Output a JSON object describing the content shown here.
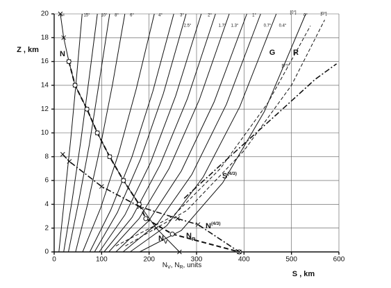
{
  "chart_data": {
    "type": "line",
    "ylabel": "Z , km",
    "xlabel": "S , km",
    "xlabel2": [
      {
        "text": "N",
        "sub": "V"
      },
      {
        "text": ", N",
        "sub": "R"
      },
      {
        "text": ", units"
      }
    ],
    "xlim": [
      0,
      600
    ],
    "ylim": [
      0,
      20
    ],
    "xticks": [
      0,
      100,
      200,
      300,
      400,
      500,
      600
    ],
    "yticks": [
      0,
      2,
      4,
      6,
      8,
      10,
      12,
      14,
      16,
      18,
      20
    ],
    "grid": true,
    "annotations": [
      "ε=",
      "N",
      "G",
      "R",
      "[0°]",
      "[0°]",
      "[0°]"
    ],
    "series": [
      {
        "name": "15°",
        "color": "#111",
        "style": "solid",
        "x": [
          10,
          22,
          35,
          47,
          59
        ],
        "values": [
          0,
          4.6,
          9.5,
          14.6,
          20
        ]
      },
      {
        "name": "10°",
        "color": "#111",
        "style": "solid",
        "x": [
          20,
          38,
          56,
          73,
          91
        ],
        "values": [
          0,
          4.4,
          9.3,
          14.4,
          20
        ]
      },
      {
        "name": "8°",
        "color": "#111",
        "style": "solid",
        "x": [
          30,
          52,
          74,
          95,
          117
        ],
        "values": [
          0,
          4.3,
          9.0,
          14.3,
          20
        ]
      },
      {
        "name": "6°",
        "color": "#111",
        "style": "solid",
        "x": [
          45,
          71,
          97,
          123,
          149
        ],
        "values": [
          0,
          4.1,
          8.8,
          14.1,
          20
        ]
      },
      {
        "name": "4°",
        "color": "#111",
        "style": "solid",
        "x": [
          60,
          98,
          136,
          173,
          211
        ],
        "values": [
          0,
          3.7,
          8.3,
          13.7,
          20
        ]
      },
      {
        "name": "3°",
        "color": "#111",
        "style": "solid",
        "x": [
          75,
          119,
          164,
          208,
          252
        ],
        "values": [
          0,
          3.5,
          8.0,
          13.5,
          20
        ]
      },
      {
        "name": "2.5°",
        "color": "#111",
        "style": "solid",
        "x": [
          85,
          133,
          182,
          230,
          278
        ],
        "values": [
          0,
          3.3,
          7.8,
          13.3,
          20
        ]
      },
      {
        "name": "2°",
        "color": "#111",
        "style": "solid",
        "x": [
          95,
          149,
          203,
          256,
          310
        ],
        "values": [
          0,
          3.1,
          7.5,
          13.1,
          20
        ]
      },
      {
        "name": "1.7°",
        "color": "#111",
        "style": "solid",
        "x": [
          105,
          164,
          223,
          281,
          340
        ],
        "values": [
          0,
          2.9,
          7.3,
          12.9,
          20
        ]
      },
      {
        "name": "1.3°",
        "color": "#111",
        "style": "solid",
        "x": [
          115,
          179,
          242,
          306,
          369
        ],
        "values": [
          0,
          2.8,
          7.0,
          12.8,
          20
        ]
      },
      {
        "name": "1°",
        "color": "#111",
        "style": "solid",
        "x": [
          130,
          199,
          268,
          337,
          406
        ],
        "values": [
          0,
          2.6,
          6.8,
          12.6,
          20
        ]
      },
      {
        "name": "0.7°",
        "color": "#111",
        "style": "solid",
        "x": [
          145,
          218,
          290,
          363,
          435
        ],
        "values": [
          0,
          2.4,
          6.5,
          12.4,
          20
        ]
      },
      {
        "name": "0.4°",
        "color": "#111",
        "style": "solid",
        "x": [
          160,
          237,
          314,
          391,
          468
        ],
        "values": [
          0,
          2.2,
          6.3,
          12.2,
          20
        ]
      },
      {
        "name": "0°",
        "color": "#111",
        "style": "solid",
        "x": [
          180,
          268,
          355,
          443,
          530
        ],
        "values": [
          0,
          1.8,
          5.8,
          11.8,
          20
        ]
      }
    ],
    "dashed_series": [
      {
        "color": "#111",
        "style": "dashed",
        "x": [
          130,
          250,
          350,
          450,
          540
        ],
        "values": [
          0.5,
          3,
          7,
          12.5,
          19
        ]
      },
      {
        "color": "#111",
        "style": "dashed",
        "x": [
          150,
          280,
          400,
          500,
          570
        ],
        "values": [
          0.5,
          3.5,
          8.5,
          14,
          19.5
        ]
      }
    ],
    "n_curves": [
      {
        "label": {
          "text": "N",
          "sub": "V"
        },
        "color": "#111",
        "style": "solid",
        "marker": "cross",
        "x": [
          13,
          20,
          31,
          44,
          69,
          91,
          117,
          146,
          179,
          215,
          264
        ],
        "values": [
          20,
          18,
          16,
          14,
          12,
          10,
          8,
          6,
          4,
          2,
          0
        ]
      },
      {
        "label": {
          "text": "N",
          "sub": "R"
        },
        "color": "#111",
        "style": "thickdashed",
        "marker": "circle",
        "x": [
          31,
          44,
          69,
          91,
          117,
          146,
          179,
          193,
          249,
          390
        ],
        "values": [
          16,
          14,
          12,
          10,
          8,
          6,
          4,
          2.8,
          1.5,
          0
        ]
      },
      {
        "label": {
          "text": "N",
          "sup": "(4/3)"
        },
        "color": "#111",
        "style": "dashdot",
        "marker": "cross",
        "x": [
          18,
          32,
          100,
          180,
          260,
          303,
          390
        ],
        "values": [
          8.2,
          7.6,
          5.5,
          3.8,
          2.8,
          2.3,
          0
        ]
      },
      {
        "label": {
          "text": "S",
          "sup": "(4/3)"
        },
        "color": "#111",
        "style": "dashdot",
        "marker": "none",
        "x": [
          274,
          370,
          470,
          550,
          595
        ],
        "values": [
          4.5,
          8,
          11.6,
          14.5,
          15.8
        ]
      }
    ]
  }
}
